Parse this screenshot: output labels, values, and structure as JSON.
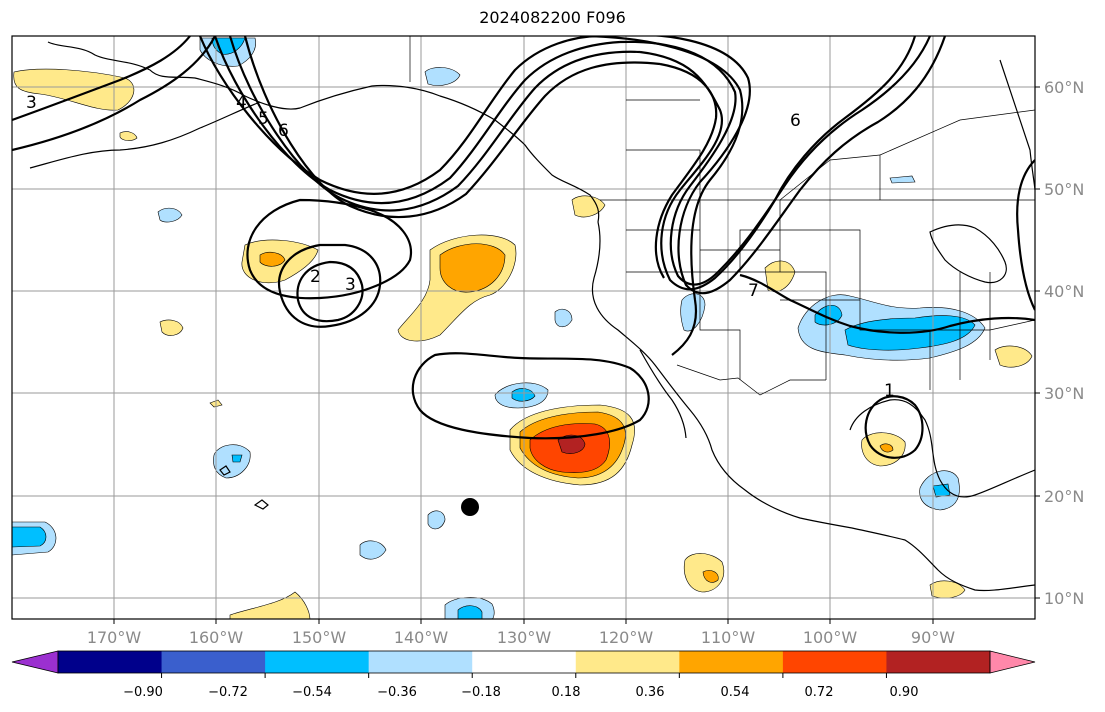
{
  "title": "2024082200 F096",
  "lat_labels": [
    "60°N",
    "50°N",
    "40°N",
    "30°N",
    "20°N",
    "10°N"
  ],
  "lon_labels": [
    "170°W",
    "160°W",
    "150°W",
    "140°W",
    "130°W",
    "120°W",
    "110°W",
    "100°W",
    "90°W"
  ],
  "contour_labels": [
    "3",
    "4",
    "5",
    "6",
    "2",
    "3",
    "6",
    "7",
    "1"
  ],
  "colorbar": {
    "ticks": [
      "−0.90",
      "−0.72",
      "−0.54",
      "−0.36",
      "−0.18",
      "0.18",
      "0.36",
      "0.54",
      "0.72",
      "0.90"
    ],
    "colors": [
      "#9b30d0",
      "#00008b",
      "#3a5fcd",
      "#00bfff",
      "#b0e0ff",
      "#ffffff",
      "#ffe98a",
      "#ffa500",
      "#ff4500",
      "#b22222",
      "#ff88aa"
    ]
  },
  "marker": "storm-position-dot"
}
